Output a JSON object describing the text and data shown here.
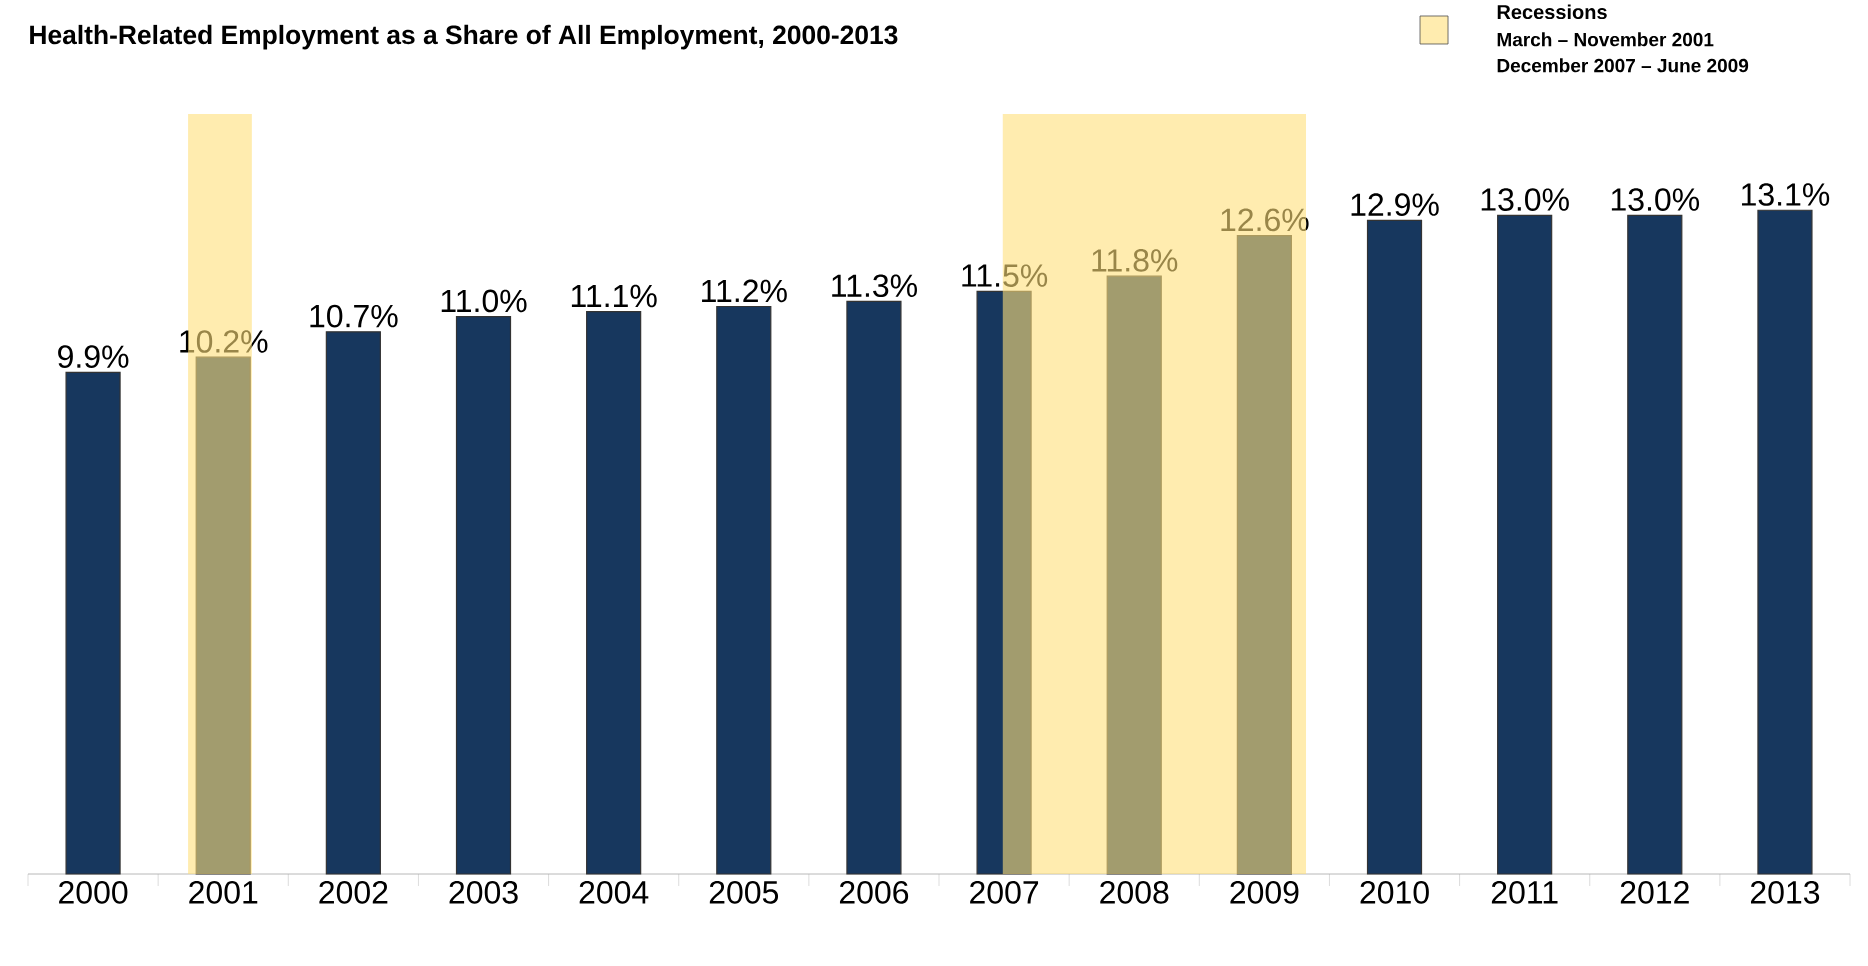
{
  "chart_data": {
    "type": "bar",
    "title": "Health-Related Employment as a Share of All Employment, 2000-2013",
    "tick_labels": "x",
    "xlim": [
      1999.5,
      2013.5
    ],
    "xticks": [
      2000,
      2001,
      2002,
      2003,
      2004,
      2005,
      2006,
      2007,
      2008,
      2009,
      2010,
      2011,
      2012,
      2013
    ],
    "ylim": [
      0,
      15
    ],
    "series": [
      {
        "color": "#17375e",
        "x": [
          2000,
          2001,
          2002,
          2003,
          2004,
          2005,
          2006,
          2007,
          2008,
          2009,
          2010,
          2011,
          2012,
          2013
        ],
        "values": [
          9.9,
          10.2,
          10.7,
          11.0,
          11.1,
          11.2,
          11.3,
          11.5,
          11.8,
          12.6,
          12.9,
          13.0,
          13.0,
          13.1
        ],
        "value_labels": [
          "9.9%",
          "10.2%",
          "10.7%",
          "11.0%",
          "11.1%",
          "11.2%",
          "11.3%",
          "11.5%",
          "11.8%",
          "12.6%",
          "12.9%",
          "13.0%",
          "13.0%",
          "13.1%"
        ]
      }
    ],
    "bands": [
      {
        "axis": "x",
        "from": 2000.73,
        "to": 2001.22,
        "color": "#ffe07a"
      },
      {
        "axis": "x",
        "from": 2006.99,
        "to": 2009.32,
        "color": "#ffe07a"
      }
    ],
    "annotations": [
      "Recessions",
      "March – November 2001",
      "December 2007 – June 2009"
    ]
  }
}
